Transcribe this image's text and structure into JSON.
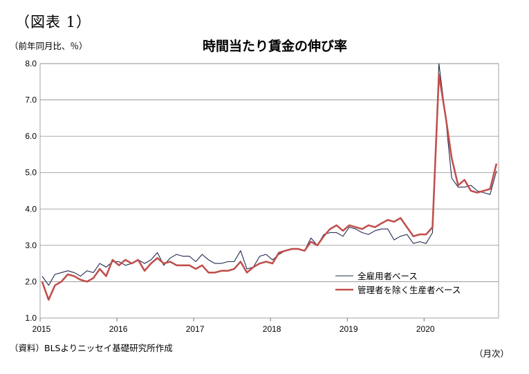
{
  "figure_label": "（図表 1）",
  "unit_label": "（前年同月比、％）",
  "source_label": "（資料）BLSよりニッセイ基礎研究所作成",
  "x_unit_label": "（月次）",
  "chart_data": {
    "type": "line",
    "title": "時間当たり賃金の伸び率",
    "ylim": [
      1.0,
      8.0
    ],
    "yticks": [
      "1.0",
      "2.0",
      "3.0",
      "4.0",
      "5.0",
      "6.0",
      "7.0",
      "8.0"
    ],
    "xticks": [
      "2015",
      "2016",
      "2017",
      "2018",
      "2019",
      "2020"
    ],
    "x_start": "2015-01",
    "x_end": "2020-12",
    "grid": "horizontal",
    "legend_position": "bottom-right",
    "series": [
      {
        "name": "全雇用者ベース",
        "color": "#1f2a4d",
        "values": [
          2.15,
          1.9,
          2.2,
          2.25,
          2.3,
          2.25,
          2.15,
          2.3,
          2.25,
          2.5,
          2.4,
          2.55,
          2.55,
          2.45,
          2.5,
          2.6,
          2.5,
          2.6,
          2.8,
          2.45,
          2.65,
          2.75,
          2.7,
          2.7,
          2.55,
          2.75,
          2.6,
          2.5,
          2.5,
          2.55,
          2.55,
          2.85,
          2.35,
          2.4,
          2.7,
          2.75,
          2.6,
          2.75,
          2.85,
          2.9,
          2.9,
          2.85,
          3.2,
          3.0,
          3.3,
          3.35,
          3.35,
          3.25,
          3.5,
          3.45,
          3.35,
          3.3,
          3.4,
          3.45,
          3.45,
          3.15,
          3.25,
          3.3,
          3.05,
          3.1,
          3.05,
          3.35,
          8.0,
          6.6,
          4.85,
          4.6,
          4.6,
          4.65,
          4.5,
          4.45,
          4.4,
          5.05
        ]
      },
      {
        "name": "管理者を除く生産者ベース",
        "color": "#c0504d",
        "values": [
          2.0,
          1.5,
          1.9,
          2.0,
          2.2,
          2.15,
          2.05,
          2.0,
          2.1,
          2.35,
          2.15,
          2.6,
          2.45,
          2.6,
          2.5,
          2.6,
          2.3,
          2.5,
          2.65,
          2.5,
          2.55,
          2.45,
          2.45,
          2.45,
          2.35,
          2.45,
          2.25,
          2.25,
          2.3,
          2.3,
          2.35,
          2.55,
          2.25,
          2.4,
          2.5,
          2.55,
          2.5,
          2.8,
          2.85,
          2.9,
          2.9,
          2.85,
          3.1,
          3.0,
          3.25,
          3.45,
          3.55,
          3.4,
          3.55,
          3.5,
          3.45,
          3.55,
          3.5,
          3.6,
          3.7,
          3.65,
          3.75,
          3.5,
          3.25,
          3.3,
          3.3,
          3.5,
          7.7,
          6.6,
          5.4,
          4.65,
          4.8,
          4.5,
          4.45,
          4.5,
          4.55,
          5.25
        ]
      }
    ]
  }
}
